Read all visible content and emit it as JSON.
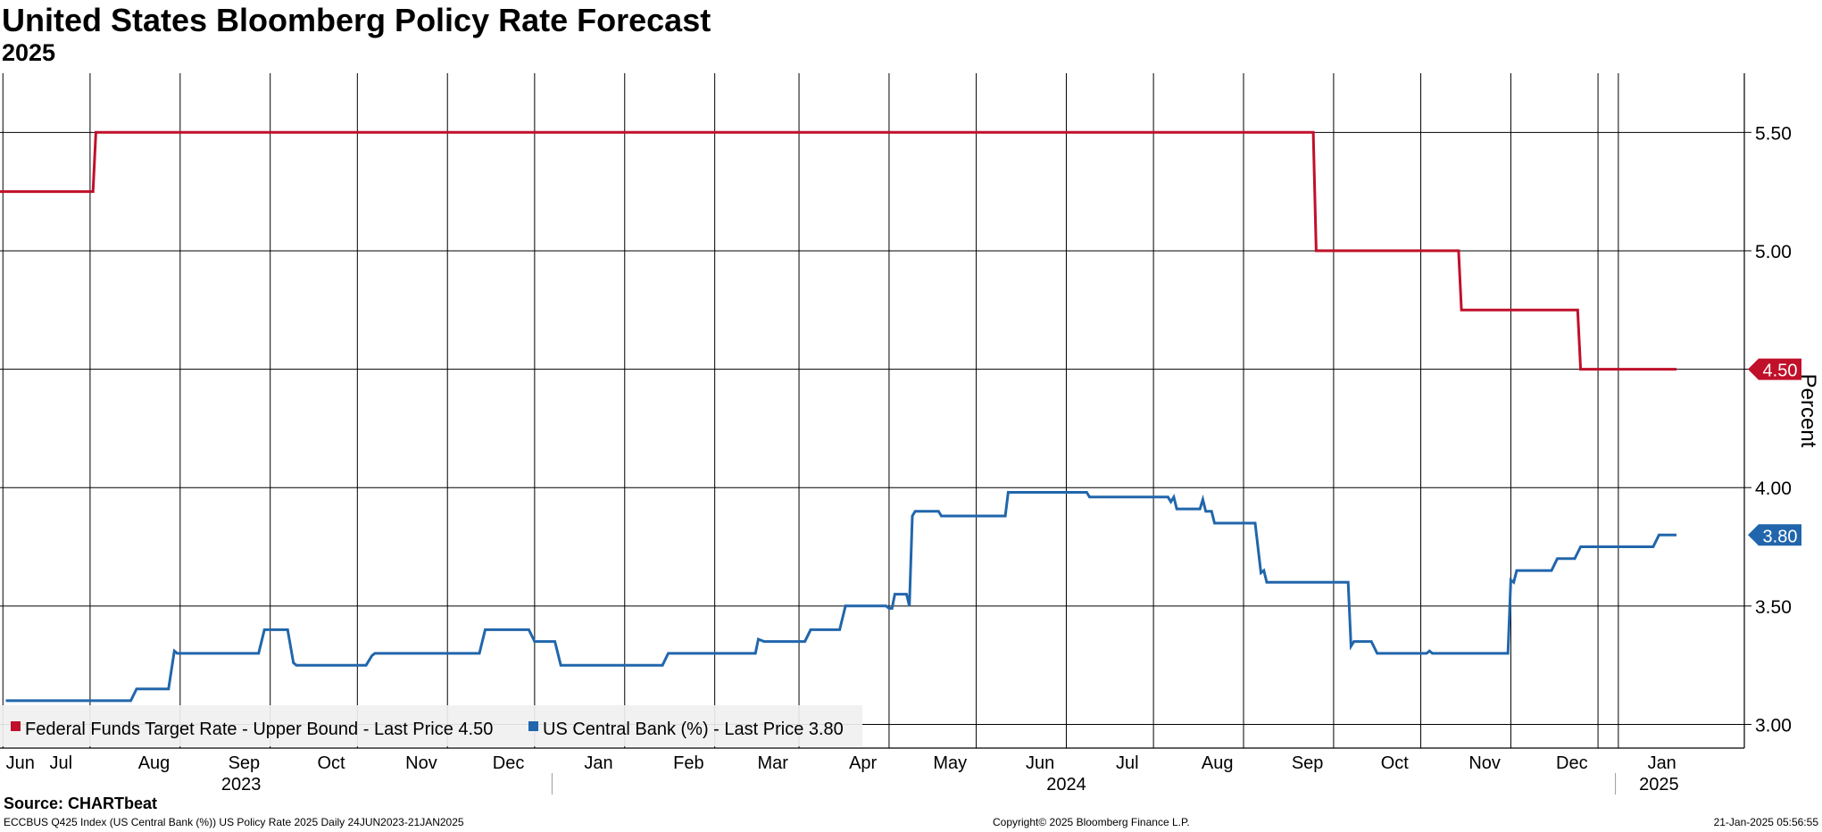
{
  "header": {
    "title": "United States Bloomberg Policy Rate Forecast",
    "subtitle": "2025"
  },
  "footer": {
    "source": "Source: CHARTbeat",
    "ticker_info": "ECCBUS Q425 Index (US Central Bank (%)) US Policy Rate 2025  Daily 24JUN2023-21JAN2025",
    "copyright": "Copyright© 2025 Bloomberg Finance L.P.",
    "timestamp": "21-Jan-2025 05:56:55"
  },
  "chart_data": {
    "type": "line",
    "title": "United States Bloomberg Policy Rate Forecast",
    "subtitle": "2025",
    "xlabel": "",
    "ylabel": "Percent",
    "x_range": [
      "2023-06-24",
      "2025-01-21"
    ],
    "ylim": [
      2.9,
      5.75
    ],
    "y_ticks": [
      3.0,
      3.5,
      4.0,
      4.5,
      5.0,
      5.5
    ],
    "y_tick_labels": [
      "3.00",
      "3.50",
      "4.00",
      "4.50",
      "5.00",
      "5.50"
    ],
    "grid": true,
    "month_ticks": [
      {
        "label": "Jun",
        "date": "2023-07-01"
      },
      {
        "label": "Jul",
        "date": "2023-07-15"
      },
      {
        "label": "Aug",
        "date": "2023-08-16"
      },
      {
        "label": "Sep",
        "date": "2023-09-16"
      },
      {
        "label": "Oct",
        "date": "2023-10-16"
      },
      {
        "label": "Nov",
        "date": "2023-11-16"
      },
      {
        "label": "Dec",
        "date": "2023-12-16"
      },
      {
        "label": "Jan",
        "date": "2024-01-16"
      },
      {
        "label": "Feb",
        "date": "2024-02-16"
      },
      {
        "label": "Mar",
        "date": "2024-03-16"
      },
      {
        "label": "Apr",
        "date": "2024-04-16"
      },
      {
        "label": "May",
        "date": "2024-05-16"
      },
      {
        "label": "Jun",
        "date": "2024-06-16"
      },
      {
        "label": "Jul",
        "date": "2024-07-16"
      },
      {
        "label": "Aug",
        "date": "2024-08-16"
      },
      {
        "label": "Sep",
        "date": "2024-09-16"
      },
      {
        "label": "Oct",
        "date": "2024-10-16"
      },
      {
        "label": "Nov",
        "date": "2024-11-16"
      },
      {
        "label": "Dec",
        "date": "2024-12-16"
      },
      {
        "label": "Jan",
        "date": "2025-01-16"
      }
    ],
    "gridlines": [
      "2023-06-25",
      "2023-07-25",
      "2023-08-25",
      "2023-09-25",
      "2023-10-25",
      "2023-11-25",
      "2023-12-25",
      "2024-01-25",
      "2024-02-25",
      "2024-03-25",
      "2024-04-25",
      "2024-05-25",
      "2024-06-25",
      "2024-07-25",
      "2024-08-25",
      "2024-09-25",
      "2024-10-25",
      "2024-11-25",
      "2024-12-25",
      "2025-01-01"
    ],
    "year_labels": [
      {
        "label": "2023",
        "date": "2023-09-15"
      },
      {
        "label": "2024",
        "date": "2024-06-25"
      },
      {
        "label": "2025",
        "date": "2025-01-15"
      }
    ],
    "year_dividers": [
      "2023-12-31",
      "2024-12-31"
    ],
    "legend_position": "bottom-left",
    "series": [
      {
        "name": "Federal Funds Target Rate - Upper Bound",
        "legend_label": "Federal Funds Target Rate - Upper Bound - Last Price 4.50",
        "color": "#c0102a",
        "last_value": 4.5,
        "last_label": "4.50",
        "points": [
          [
            "2023-06-24",
            5.25
          ],
          [
            "2023-07-26",
            5.25
          ],
          [
            "2023-07-27",
            5.5
          ],
          [
            "2024-09-18",
            5.5
          ],
          [
            "2024-09-19",
            5.0
          ],
          [
            "2024-11-07",
            5.0
          ],
          [
            "2024-11-08",
            4.75
          ],
          [
            "2024-12-18",
            4.75
          ],
          [
            "2024-12-19",
            4.5
          ],
          [
            "2025-01-21",
            4.5
          ]
        ]
      },
      {
        "name": "US Central Bank (%)",
        "legend_label": "US Central Bank (%) - Last Price 3.80",
        "color": "#2166ac",
        "last_value": 3.8,
        "last_label": "3.80",
        "points": [
          [
            "2023-06-26",
            3.1
          ],
          [
            "2023-08-08",
            3.1
          ],
          [
            "2023-08-10",
            3.15
          ],
          [
            "2023-08-21",
            3.15
          ],
          [
            "2023-08-23",
            3.31
          ],
          [
            "2023-08-24",
            3.3
          ],
          [
            "2023-09-21",
            3.3
          ],
          [
            "2023-09-23",
            3.4
          ],
          [
            "2023-10-01",
            3.4
          ],
          [
            "2023-10-03",
            3.26
          ],
          [
            "2023-10-04",
            3.25
          ],
          [
            "2023-10-28",
            3.25
          ],
          [
            "2023-10-30",
            3.29
          ],
          [
            "2023-10-31",
            3.3
          ],
          [
            "2023-12-06",
            3.3
          ],
          [
            "2023-12-08",
            3.4
          ],
          [
            "2023-12-23",
            3.4
          ],
          [
            "2023-12-25",
            3.35
          ],
          [
            "2024-01-01",
            3.35
          ],
          [
            "2024-01-03",
            3.25
          ],
          [
            "2024-02-07",
            3.25
          ],
          [
            "2024-02-09",
            3.3
          ],
          [
            "2024-03-10",
            3.3
          ],
          [
            "2024-03-11",
            3.36
          ],
          [
            "2024-03-13",
            3.35
          ],
          [
            "2024-03-27",
            3.35
          ],
          [
            "2024-03-29",
            3.4
          ],
          [
            "2024-04-08",
            3.4
          ],
          [
            "2024-04-10",
            3.5
          ],
          [
            "2024-04-24",
            3.5
          ],
          [
            "2024-04-25",
            3.49
          ],
          [
            "2024-04-26",
            3.49
          ],
          [
            "2024-04-27",
            3.55
          ],
          [
            "2024-05-01",
            3.55
          ],
          [
            "2024-05-02",
            3.5
          ],
          [
            "2024-05-03",
            3.88
          ],
          [
            "2024-05-04",
            3.9
          ],
          [
            "2024-05-12",
            3.9
          ],
          [
            "2024-05-13",
            3.88
          ],
          [
            "2024-06-04",
            3.88
          ],
          [
            "2024-06-05",
            3.98
          ],
          [
            "2024-07-02",
            3.98
          ],
          [
            "2024-07-03",
            3.96
          ],
          [
            "2024-07-30",
            3.96
          ],
          [
            "2024-07-31",
            3.94
          ],
          [
            "2024-08-01",
            3.96
          ],
          [
            "2024-08-02",
            3.91
          ],
          [
            "2024-08-10",
            3.91
          ],
          [
            "2024-08-11",
            3.95
          ],
          [
            "2024-08-12",
            3.9
          ],
          [
            "2024-08-14",
            3.9
          ],
          [
            "2024-08-15",
            3.85
          ],
          [
            "2024-08-29",
            3.85
          ],
          [
            "2024-08-31",
            3.64
          ],
          [
            "2024-09-01",
            3.65
          ],
          [
            "2024-09-02",
            3.6
          ],
          [
            "2024-09-30",
            3.6
          ],
          [
            "2024-10-01",
            3.33
          ],
          [
            "2024-10-02",
            3.35
          ],
          [
            "2024-10-08",
            3.35
          ],
          [
            "2024-10-10",
            3.3
          ],
          [
            "2024-10-27",
            3.3
          ],
          [
            "2024-10-28",
            3.31
          ],
          [
            "2024-10-29",
            3.3
          ],
          [
            "2024-11-24",
            3.3
          ],
          [
            "2024-11-25",
            3.61
          ],
          [
            "2024-11-26",
            3.6
          ],
          [
            "2024-11-27",
            3.65
          ],
          [
            "2024-12-09",
            3.65
          ],
          [
            "2024-12-11",
            3.7
          ],
          [
            "2024-12-17",
            3.7
          ],
          [
            "2024-12-19",
            3.75
          ],
          [
            "2025-01-13",
            3.75
          ],
          [
            "2025-01-15",
            3.8
          ],
          [
            "2025-01-21",
            3.8
          ]
        ]
      }
    ]
  }
}
